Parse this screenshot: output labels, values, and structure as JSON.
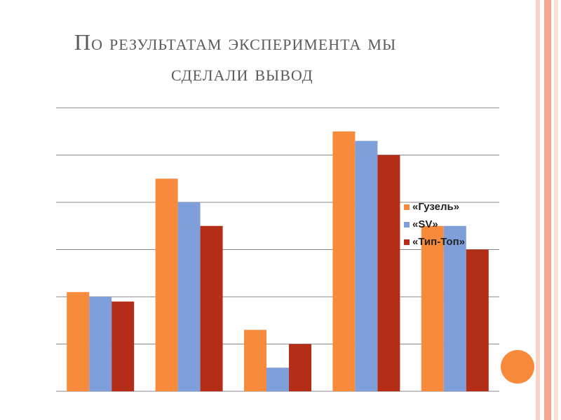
{
  "slide": {
    "title_line_1": "По результатам эксперимента мы",
    "title_line_2": "сделали вывод",
    "accent_color": "#f78a3b",
    "stripe_colors": [
      "#f9d2c3",
      "#f4a890",
      "#fbe2d8"
    ]
  },
  "chart_data": {
    "type": "bar",
    "categories": [
      "",
      "",
      "",
      "",
      ""
    ],
    "series": [
      {
        "name": "«Гузель»",
        "color": "#f78a3b",
        "values": [
          2.1,
          4.5,
          1.3,
          5.5,
          3.5
        ]
      },
      {
        "name": "«SV»",
        "color": "#7f9fdb",
        "values": [
          2.0,
          4.0,
          0.5,
          5.3,
          3.5
        ]
      },
      {
        "name": "«Тип-Топ»",
        "color": "#b32d17",
        "values": [
          1.9,
          3.5,
          1.0,
          5.0,
          3.0
        ]
      }
    ],
    "title": "",
    "xlabel": "",
    "ylabel": "",
    "ylim": [
      0,
      6
    ],
    "gridlines": true,
    "y_tick_labels": false,
    "legend_position": "right"
  }
}
